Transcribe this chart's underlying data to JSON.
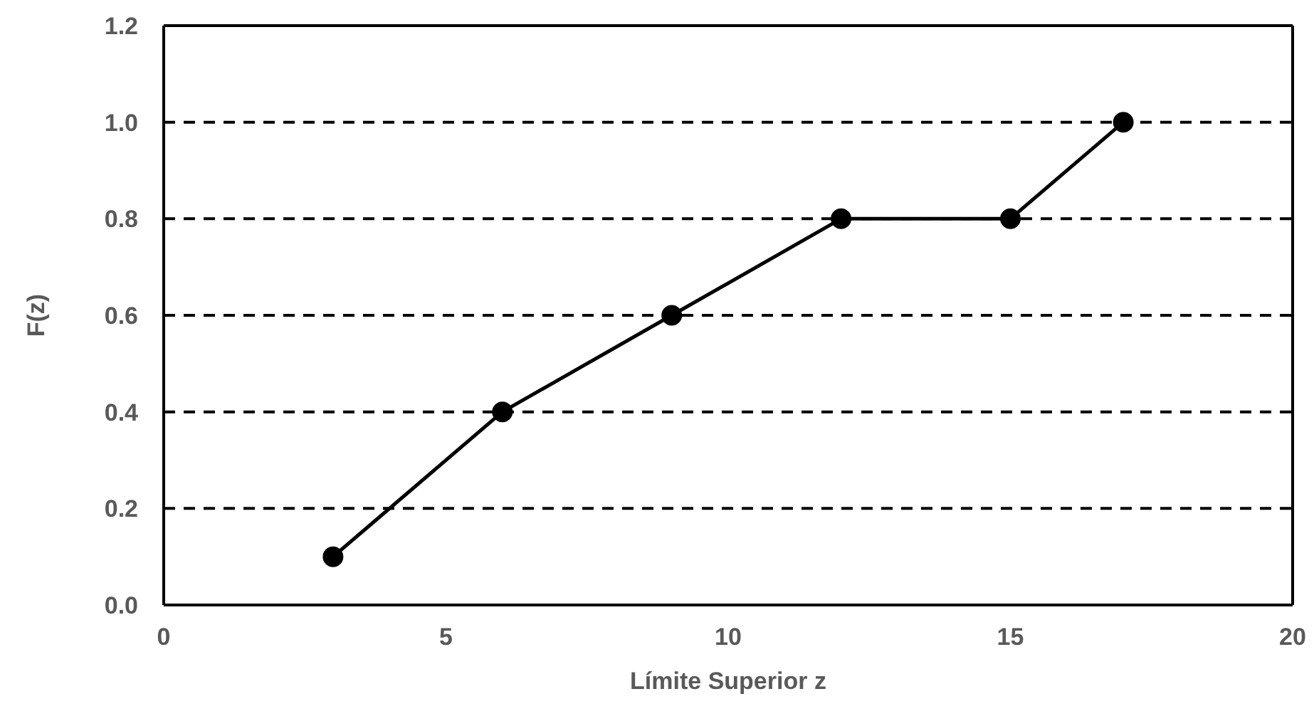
{
  "chart_data": {
    "type": "line",
    "xlabel": "Límite Superior z",
    "ylabel": "F(z)",
    "x": [
      3,
      6,
      9,
      12,
      15,
      17
    ],
    "series": [
      {
        "color": "#000000",
        "values": [
          0.1,
          0.4,
          0.6,
          0.8,
          0.8,
          1.0
        ]
      }
    ],
    "xlim": [
      0,
      20
    ],
    "xticks": [
      0,
      5,
      10,
      15,
      20
    ],
    "ylim": [
      0,
      1.2
    ],
    "yticks": [
      {
        "value": 0,
        "label": "0.0"
      },
      {
        "value": 0.2,
        "label": "0.2"
      },
      {
        "value": 0.4,
        "label": "0.4"
      },
      {
        "value": 0.6,
        "label": "0.6"
      },
      {
        "value": 0.8,
        "label": "0.8"
      },
      {
        "value": 1.0,
        "label": "1.0"
      },
      {
        "value": 1.2,
        "label": "1.2"
      }
    ],
    "grid": "y",
    "marker": "circle",
    "line_style": "solid",
    "legend": false
  }
}
